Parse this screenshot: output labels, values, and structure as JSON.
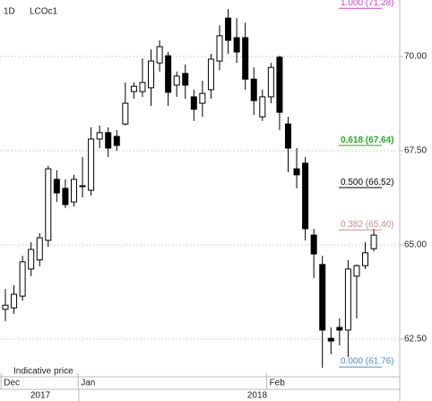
{
  "chart_data": {
    "type": "candlestick",
    "interval": "1D",
    "symbol": "LCOc1",
    "note": "Indicative price",
    "categories": [
      "Dec",
      null,
      null,
      null,
      null,
      null,
      null,
      null,
      null,
      "Jan",
      null,
      null,
      null,
      null,
      null,
      null,
      null,
      null,
      null,
      null,
      null,
      null,
      null,
      null,
      null,
      null,
      null,
      null,
      null,
      null,
      null,
      "Feb",
      null,
      null,
      null,
      null,
      null,
      null,
      null,
      null,
      null,
      null,
      null,
      null
    ],
    "year_labels": [
      "2017",
      "2018"
    ],
    "open": [
      63.29,
      63.33,
      63.64,
      64.36,
      64.6,
      65.12,
      66.74,
      66.5,
      66.14,
      66.55,
      66.45,
      67.81,
      67.98,
      67.88,
      68.21,
      69.07,
      69.07,
      69.17,
      69.83,
      70.02,
      69.24,
      69.55,
      68.93,
      68.76,
      69.12,
      69.88,
      71.02,
      70.5,
      70.5,
      69.4,
      68.4,
      68.93,
      69.98,
      68.21,
      67.02,
      67.17,
      65.26,
      64.48,
      62.52,
      62.81,
      62.74,
      64.17,
      64.45,
      64.9
    ],
    "high": [
      63.83,
      63.93,
      64.71,
      65.07,
      65.31,
      67.1,
      66.98,
      66.74,
      66.86,
      67.33,
      68.12,
      68.17,
      68.12,
      68.05,
      69.31,
      69.31,
      69.95,
      70.19,
      70.43,
      70.12,
      69.6,
      69.79,
      69.12,
      69.36,
      70.07,
      70.83,
      71.26,
      71.02,
      70.9,
      69.71,
      69.12,
      69.83,
      70.02,
      68.4,
      67.57,
      67.33,
      65.43,
      64.71,
      62.81,
      63.05,
      64.6,
      64.48,
      65.07,
      65.43
    ],
    "low": [
      62.98,
      63.17,
      63.52,
      64.17,
      64.43,
      64.95,
      66.14,
      65.98,
      66.02,
      66.26,
      66.31,
      67.57,
      67.33,
      67.5,
      68.17,
      68.88,
      68.93,
      68.69,
      69.6,
      68.69,
      68.93,
      68.88,
      68.29,
      68.4,
      68.88,
      69.64,
      70.07,
      69.83,
      69.12,
      68.45,
      68.29,
      68.76,
      68.05,
      66.93,
      66.5,
      65.12,
      64.12,
      61.74,
      62.1,
      62.33,
      62.02,
      63.05,
      64.36,
      64.83
    ],
    "close": [
      63.4,
      63.69,
      64.55,
      64.88,
      65.19,
      67.02,
      66.38,
      66.07,
      66.74,
      66.57,
      67.81,
      67.98,
      67.57,
      67.64,
      68.76,
      69.21,
      69.31,
      69.88,
      70.26,
      69.05,
      69.48,
      69.24,
      68.6,
      69.02,
      69.93,
      70.55,
      70.43,
      70.12,
      69.4,
      68.83,
      68.93,
      69.71,
      68.52,
      67.57,
      66.86,
      65.43,
      64.76,
      62.74,
      62.45,
      62.74,
      64.36,
      64.45,
      64.79,
      65.26
    ],
    "up_color": "#ffffff",
    "down_color": "#000000",
    "ylim": [
      61.5,
      71.5
    ],
    "yticks": [
      {
        "value": 62.5,
        "label": "62.50"
      },
      {
        "value": 65,
        "label": "65.00"
      },
      {
        "value": 67.5,
        "label": "67.50"
      },
      {
        "value": 70,
        "label": "70.00"
      }
    ],
    "grid": true,
    "fib_levels": [
      {
        "value": 71.28,
        "label": "1.000 (71.28)",
        "color": "#d040d0"
      },
      {
        "value": 67.64,
        "label": "0.618 (67.64)",
        "color": "#1fae1f"
      },
      {
        "value": 66.52,
        "label": "0.500 (66.52)",
        "color": "#000000"
      },
      {
        "value": 65.4,
        "label": "0.382 (65.40)",
        "color": "#d08a8a"
      },
      {
        "value": 61.76,
        "label": "0.000 (61.76)",
        "color": "#4a8fd0"
      }
    ]
  }
}
